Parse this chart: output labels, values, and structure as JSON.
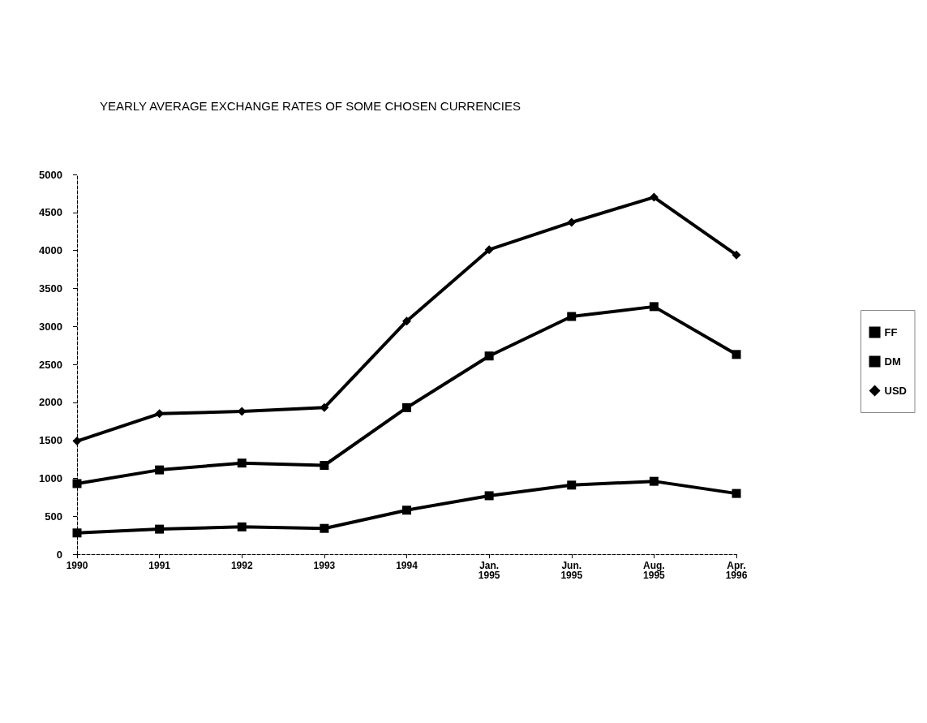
{
  "chart_data": {
    "type": "line",
    "title": "YEARLY AVERAGE EXCHANGE RATES OF SOME CHOSEN CURRENCIES",
    "categories": [
      "1990",
      "1991",
      "1992",
      "1993",
      "1994",
      "Jan. 1995",
      "Jun. 1995",
      "Aug. 1995",
      "Apr. 1996"
    ],
    "series": [
      {
        "name": "FF",
        "color": "#000000",
        "marker": "square",
        "values": [
          280,
          330,
          360,
          340,
          580,
          770,
          910,
          960,
          800
        ]
      },
      {
        "name": "DM",
        "color": "#000000",
        "marker": "square",
        "values": [
          930,
          1110,
          1200,
          1170,
          1930,
          2610,
          3130,
          3260,
          2630
        ]
      },
      {
        "name": "USD",
        "color": "#000000",
        "marker": "diamond",
        "values": [
          1490,
          1850,
          1880,
          1930,
          3070,
          4010,
          4370,
          4700,
          3940
        ]
      }
    ],
    "ylim": [
      0,
      5000
    ],
    "yticks": [
      0,
      500,
      1000,
      1500,
      2000,
      2500,
      3000,
      3500,
      4000,
      4500,
      5000
    ],
    "grid": false,
    "legend": "right",
    "line_style": "solid"
  }
}
